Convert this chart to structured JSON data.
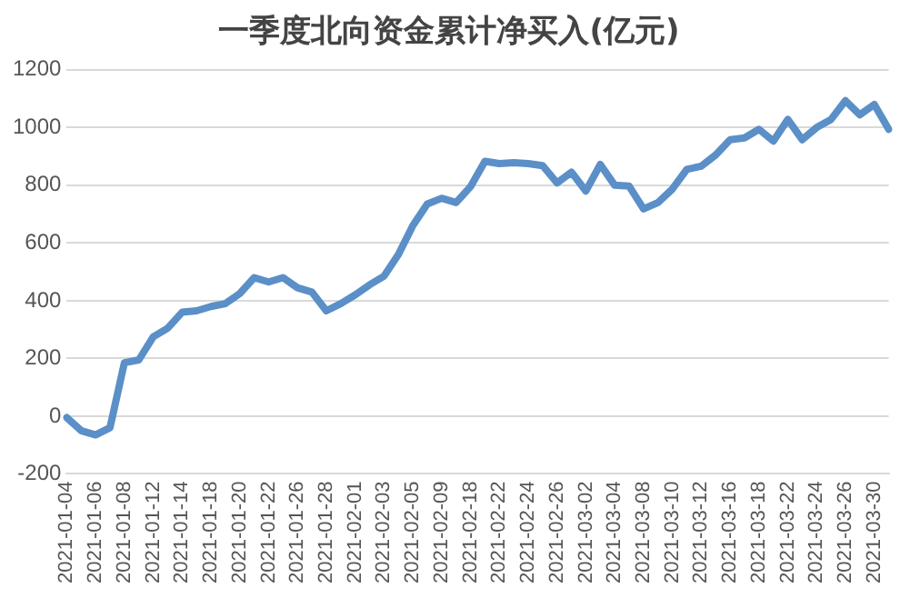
{
  "chart_data": {
    "type": "line",
    "title": "一季度北向资金累计净买入(亿元)",
    "categories": [
      "2021-01-04",
      null,
      "2021-01-06",
      null,
      "2021-01-08",
      null,
      "2021-01-12",
      null,
      "2021-01-14",
      null,
      "2021-01-18",
      null,
      "2021-01-20",
      null,
      "2021-01-22",
      null,
      "2021-01-26",
      null,
      "2021-01-28",
      null,
      "2021-02-01",
      null,
      "2021-02-03",
      null,
      "2021-02-05",
      null,
      "2021-02-09",
      null,
      "2021-02-18",
      null,
      "2021-02-22",
      null,
      "2021-02-24",
      null,
      "2021-02-26",
      null,
      "2021-03-02",
      null,
      "2021-03-04",
      null,
      "2021-03-08",
      null,
      "2021-03-10",
      null,
      "2021-03-12",
      null,
      "2021-03-16",
      null,
      "2021-03-18",
      null,
      "2021-03-22",
      null,
      "2021-03-24",
      null,
      "2021-03-26",
      null,
      "2021-03-30",
      null
    ],
    "series": [
      {
        "color": "#5b8fc7",
        "values": [
          -5,
          -50,
          -65,
          -40,
          185,
          195,
          275,
          305,
          360,
          365,
          380,
          390,
          425,
          480,
          465,
          480,
          445,
          430,
          365,
          390,
          420,
          455,
          485,
          560,
          660,
          735,
          755,
          740,
          795,
          883,
          875,
          878,
          875,
          868,
          808,
          845,
          780,
          872,
          800,
          797,
          718,
          740,
          787,
          855,
          866,
          905,
          958,
          964,
          994,
          953,
          1028,
          958,
          1000,
          1028,
          1093,
          1044,
          1080,
          994
        ]
      }
    ],
    "ylim": [
      -200,
      1200
    ],
    "yticks": [
      -200,
      0,
      200,
      400,
      600,
      800,
      1000,
      1200
    ],
    "grid": "y",
    "legend": false,
    "marker": "none",
    "line_style": "solid"
  }
}
